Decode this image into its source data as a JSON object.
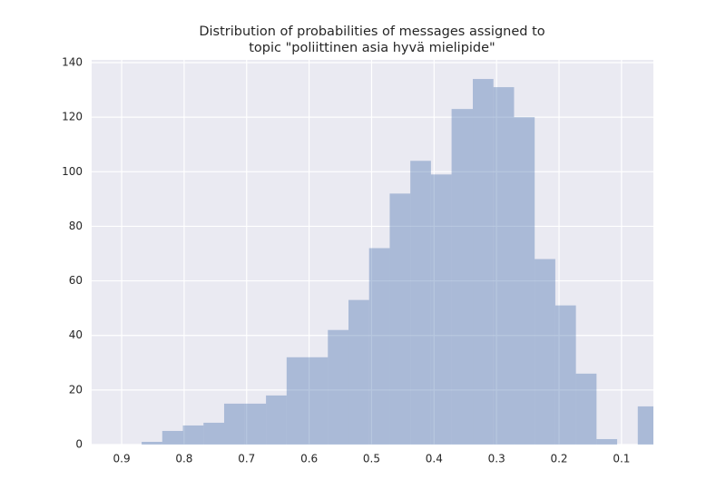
{
  "chart_data": {
    "type": "histogram",
    "title": [
      "Distribution of probabilities of messages assigned to",
      "topic \"poliittinen asia hyvä mielipide\""
    ],
    "bins": [
      0.868,
      0.835,
      0.802,
      0.769,
      0.736,
      0.703,
      0.669,
      0.636,
      0.603,
      0.57,
      0.537,
      0.504,
      0.471,
      0.438,
      0.405,
      0.372,
      0.338,
      0.305,
      0.272,
      0.239,
      0.206,
      0.173,
      0.14,
      0.107,
      0.074,
      0.041
    ],
    "counts": [
      1,
      5,
      7,
      8,
      15,
      15,
      18,
      32,
      32,
      42,
      53,
      72,
      92,
      104,
      99,
      123,
      134,
      131,
      120,
      68,
      51,
      26,
      2,
      0,
      14
    ],
    "color": "#4c72b0",
    "alpha": 0.4,
    "xlim": [
      0.948,
      0.049
    ],
    "xticks": [
      0.9,
      0.8,
      0.7,
      0.6,
      0.5,
      0.4,
      0.3,
      0.2,
      0.1
    ],
    "ylim": [
      0,
      141
    ],
    "yticks": [
      0,
      20,
      40,
      60,
      80,
      100,
      120,
      140
    ],
    "grid": true
  }
}
